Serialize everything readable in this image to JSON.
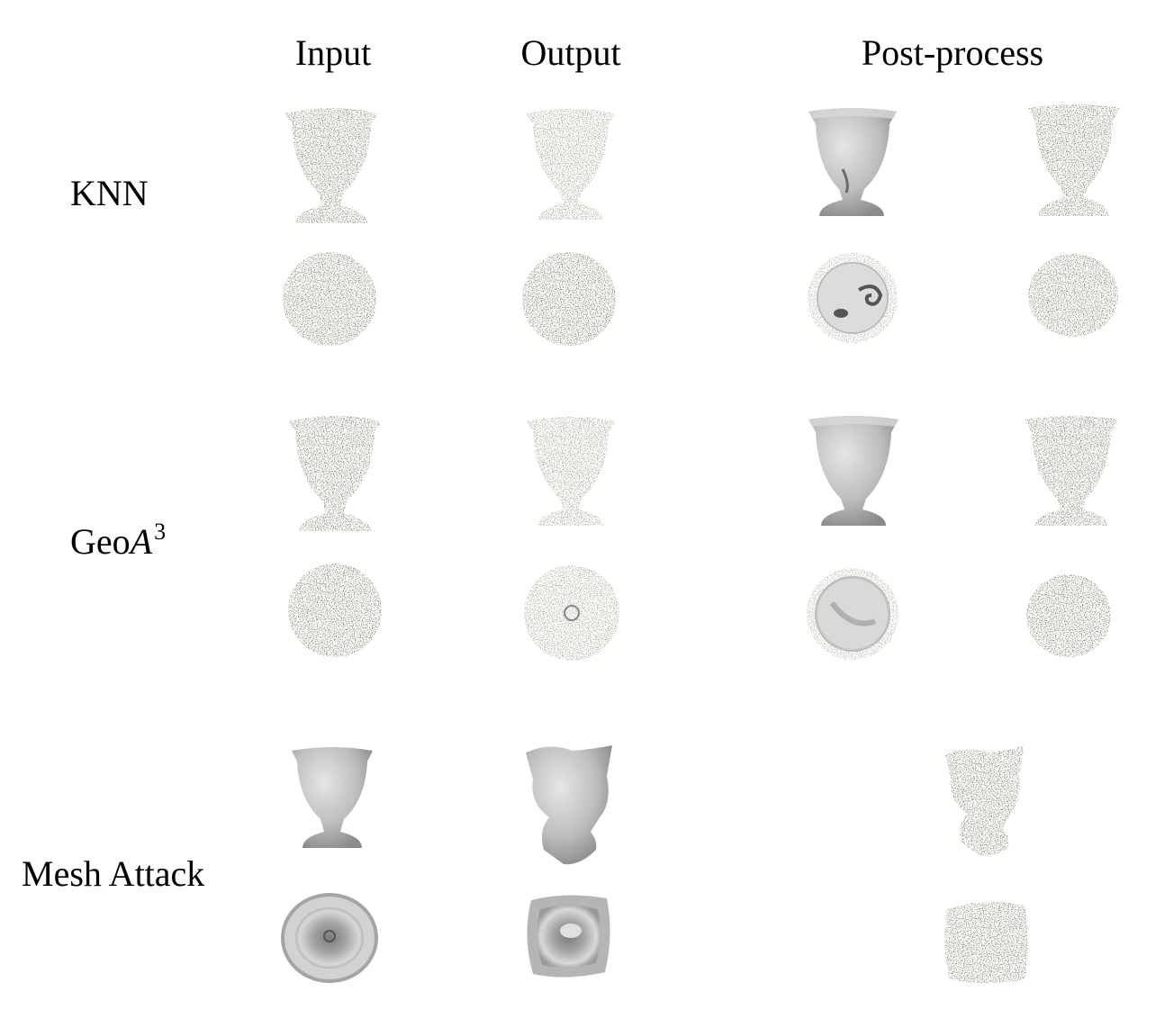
{
  "columns": {
    "input": "Input",
    "output": "Output",
    "post_process": "Post-process"
  },
  "rows": {
    "knn": {
      "label": "KNN"
    },
    "geoa3": {
      "label_prefix": "Geo",
      "label_italic": "A",
      "label_sup": "3"
    },
    "mesh_attack": {
      "label": "Mesh Attack"
    }
  },
  "colors": {
    "points": "#3a3a2a",
    "points_light": "#b8b8a8",
    "mesh": "#c9c9c9",
    "mesh_dark": "#8a8a8a"
  }
}
